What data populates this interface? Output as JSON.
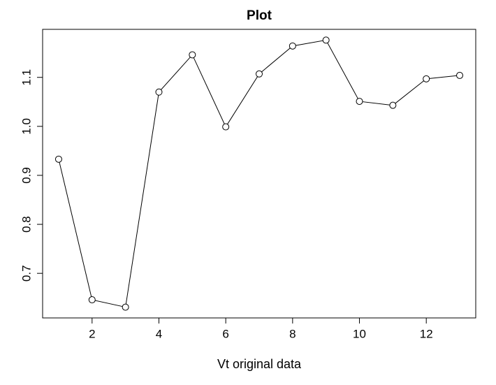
{
  "chart_data": {
    "type": "line",
    "title": "Plot",
    "x_label": "Vt original data",
    "x": [
      1,
      2,
      3,
      4,
      5,
      6,
      7,
      8,
      9,
      10,
      11,
      12,
      13
    ],
    "values": [
      0.933,
      0.646,
      0.631,
      1.07,
      1.146,
      0.999,
      1.107,
      1.164,
      1.176,
      1.051,
      1.043,
      1.097,
      1.104
    ],
    "color": "#000000",
    "xlim": [
      0.52,
      13.48
    ],
    "ylim": [
      0.609,
      1.198
    ],
    "xticks": [
      2,
      4,
      6,
      8,
      10,
      12
    ],
    "yticks": [
      0.7,
      0.8,
      0.9,
      {
        "value": 1,
        "label": "1.0"
      },
      1.1
    ],
    "grid": false
  }
}
